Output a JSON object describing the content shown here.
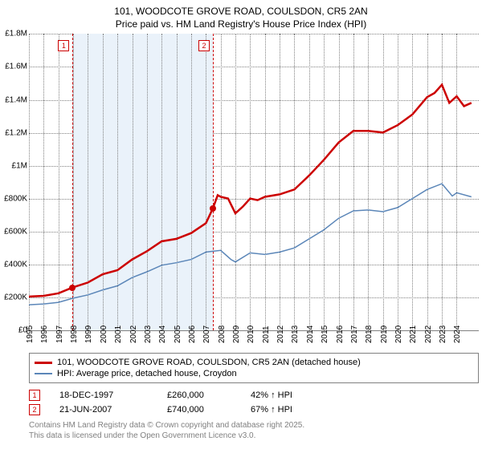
{
  "title": {
    "line1": "101, WOODCOTE GROVE ROAD, COULSDON, CR5 2AN",
    "line2": "Price paid vs. HM Land Registry's House Price Index (HPI)"
  },
  "colors": {
    "series_property": "#cc0000",
    "series_hpi": "#5b86b8",
    "grid": "#808080",
    "axis": "#000000",
    "marker_border": "#cc0000",
    "marker_dot": "#cc0000",
    "license_text": "#808080",
    "band_fill": "#eaf2fa",
    "legend_border": "#808080"
  },
  "chart": {
    "xlim": [
      1995,
      2025.5
    ],
    "ylim": [
      0,
      1800000
    ],
    "ytick_step": 200000,
    "y_ticks": [
      {
        "v": 0,
        "label": "£0"
      },
      {
        "v": 200000,
        "label": "£200K"
      },
      {
        "v": 400000,
        "label": "£400K"
      },
      {
        "v": 600000,
        "label": "£600K"
      },
      {
        "v": 800000,
        "label": "£800K"
      },
      {
        "v": 1000000,
        "label": "£1M"
      },
      {
        "v": 1200000,
        "label": "£1.2M"
      },
      {
        "v": 1400000,
        "label": "£1.4M"
      },
      {
        "v": 1600000,
        "label": "£1.6M"
      },
      {
        "v": 1800000,
        "label": "£1.8M"
      }
    ],
    "x_ticks": [
      1995,
      1996,
      1997,
      1998,
      1999,
      2000,
      2001,
      2002,
      2003,
      2004,
      2005,
      2006,
      2007,
      2008,
      2009,
      2010,
      2011,
      2012,
      2013,
      2014,
      2015,
      2016,
      2017,
      2018,
      2019,
      2020,
      2021,
      2022,
      2023,
      2024
    ],
    "property_line_width": 2.5,
    "hpi_line_width": 1.5,
    "grid_style": "dotted",
    "background_band": {
      "from": 1997.96,
      "to": 2007.47
    }
  },
  "series": {
    "property": [
      [
        1995,
        205000
      ],
      [
        1996,
        209000
      ],
      [
        1997,
        225000
      ],
      [
        1997.96,
        260000
      ],
      [
        1999,
        290000
      ],
      [
        2000,
        340000
      ],
      [
        2001,
        365000
      ],
      [
        2002,
        430000
      ],
      [
        2003,
        480000
      ],
      [
        2004,
        540000
      ],
      [
        2005,
        555000
      ],
      [
        2006,
        590000
      ],
      [
        2007,
        650000
      ],
      [
        2007.47,
        740000
      ],
      [
        2007.8,
        820000
      ],
      [
        2008,
        810000
      ],
      [
        2008.5,
        800000
      ],
      [
        2009,
        710000
      ],
      [
        2009.5,
        750000
      ],
      [
        2010,
        800000
      ],
      [
        2010.5,
        790000
      ],
      [
        2011,
        810000
      ],
      [
        2012,
        825000
      ],
      [
        2013,
        855000
      ],
      [
        2014,
        940000
      ],
      [
        2015,
        1035000
      ],
      [
        2016,
        1140000
      ],
      [
        2017,
        1210000
      ],
      [
        2018,
        1210000
      ],
      [
        2019,
        1200000
      ],
      [
        2020,
        1245000
      ],
      [
        2021,
        1310000
      ],
      [
        2022,
        1415000
      ],
      [
        2022.5,
        1440000
      ],
      [
        2023,
        1490000
      ],
      [
        2023.5,
        1380000
      ],
      [
        2024,
        1420000
      ],
      [
        2024.5,
        1360000
      ],
      [
        2025,
        1380000
      ]
    ],
    "hpi": [
      [
        1995,
        155000
      ],
      [
        1996,
        160000
      ],
      [
        1997,
        170000
      ],
      [
        1998,
        195000
      ],
      [
        1999,
        215000
      ],
      [
        2000,
        245000
      ],
      [
        2001,
        270000
      ],
      [
        2002,
        320000
      ],
      [
        2003,
        355000
      ],
      [
        2004,
        395000
      ],
      [
        2005,
        410000
      ],
      [
        2006,
        430000
      ],
      [
        2007,
        475000
      ],
      [
        2008,
        485000
      ],
      [
        2008.7,
        430000
      ],
      [
        2009,
        415000
      ],
      [
        2010,
        470000
      ],
      [
        2011,
        460000
      ],
      [
        2012,
        475000
      ],
      [
        2013,
        500000
      ],
      [
        2014,
        555000
      ],
      [
        2015,
        610000
      ],
      [
        2016,
        680000
      ],
      [
        2017,
        725000
      ],
      [
        2018,
        730000
      ],
      [
        2019,
        720000
      ],
      [
        2020,
        745000
      ],
      [
        2021,
        800000
      ],
      [
        2022,
        855000
      ],
      [
        2023,
        890000
      ],
      [
        2023.7,
        815000
      ],
      [
        2024,
        835000
      ],
      [
        2025,
        810000
      ]
    ]
  },
  "sale_markers": [
    {
      "n": "1",
      "x": 1997.96,
      "y": 260000,
      "date": "18-DEC-1997",
      "price": "£260,000",
      "hpi": "42% ↑ HPI"
    },
    {
      "n": "2",
      "x": 2007.47,
      "y": 740000,
      "date": "21-JUN-2007",
      "price": "£740,000",
      "hpi": "67% ↑ HPI"
    }
  ],
  "legend": {
    "s1": "101, WOODCOTE GROVE ROAD, COULSDON, CR5 2AN (detached house)",
    "s2": "HPI: Average price, detached house, Croydon"
  },
  "license": {
    "l1": "Contains HM Land Registry data © Crown copyright and database right 2025.",
    "l2": "This data is licensed under the Open Government Licence v3.0."
  }
}
